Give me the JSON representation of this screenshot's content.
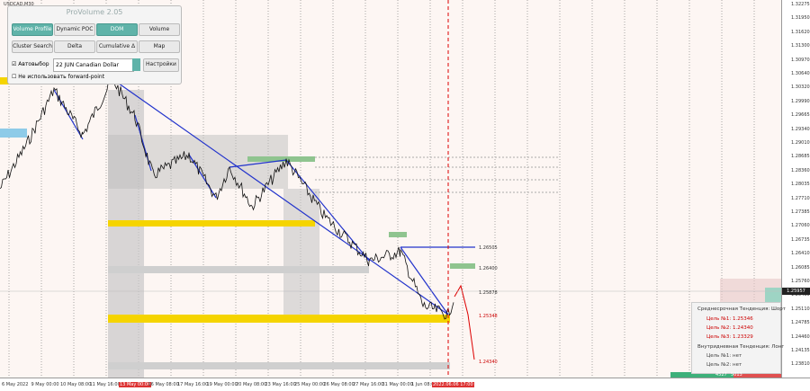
{
  "symbol": "USDCAD,M30",
  "panel": {
    "title": "ProVolume 2.05",
    "buttons": [
      "Volume Profile",
      "Dynamic POC",
      "DOM",
      "Volume",
      "Cluster Search",
      "Delta",
      "Cumulative Δ",
      "Map"
    ],
    "auto_select": "Автовыбор",
    "instrument": "22 JUN Canadian Dollar",
    "settings": "Настройки",
    "forward_point": "Не использовать forward-point"
  },
  "price_axis": [
    "1.32275",
    "1.31950",
    "1.31620",
    "1.31300",
    "1.30970",
    "1.30640",
    "1.30320",
    "1.29990",
    "1.29665",
    "1.29340",
    "1.29010",
    "1.28685",
    "1.28360",
    "1.28035",
    "1.27710",
    "1.27385",
    "1.27060",
    "1.26735",
    "1.26410",
    "1.26085",
    "1.25760",
    "1.25435",
    "1.25110",
    "1.24785",
    "1.24460",
    "1.24135",
    "1.23810"
  ],
  "current_price": "1.25957",
  "time_axis": [
    "6 May 2022",
    "9 May 00:00",
    "10 May 08:00",
    "11 May 16:00",
    "13 May 00:00",
    "16 May 08:00",
    "17 May 16:00",
    "19 May 00:00",
    "20 May 08:00",
    "23 May 16:00",
    "25 May 00:00",
    "26 May 08:00",
    "27 May 16:00",
    "31 May 00:00",
    "1 Jun 08:00",
    "2 Jun 16:00",
    "2022.06.06 17:00"
  ],
  "level_labels": [
    "1.26505",
    "1.26400",
    "1.25878",
    "1.25348",
    "1.24340"
  ],
  "info": {
    "medium_trend": "Среднесрочная Тенденция: Шорт",
    "medium_targets": [
      "Цель №1: 1.25346",
      "Цель №2: 1.24340",
      "Цель №3: 1.23329"
    ],
    "intraday_trend": "Внутридневная Тенденция: Лонг",
    "intraday_targets": [
      "Цель №1: нет",
      "Цель №2: нет"
    ]
  },
  "footer": [
    "4527",
    "5013"
  ]
}
